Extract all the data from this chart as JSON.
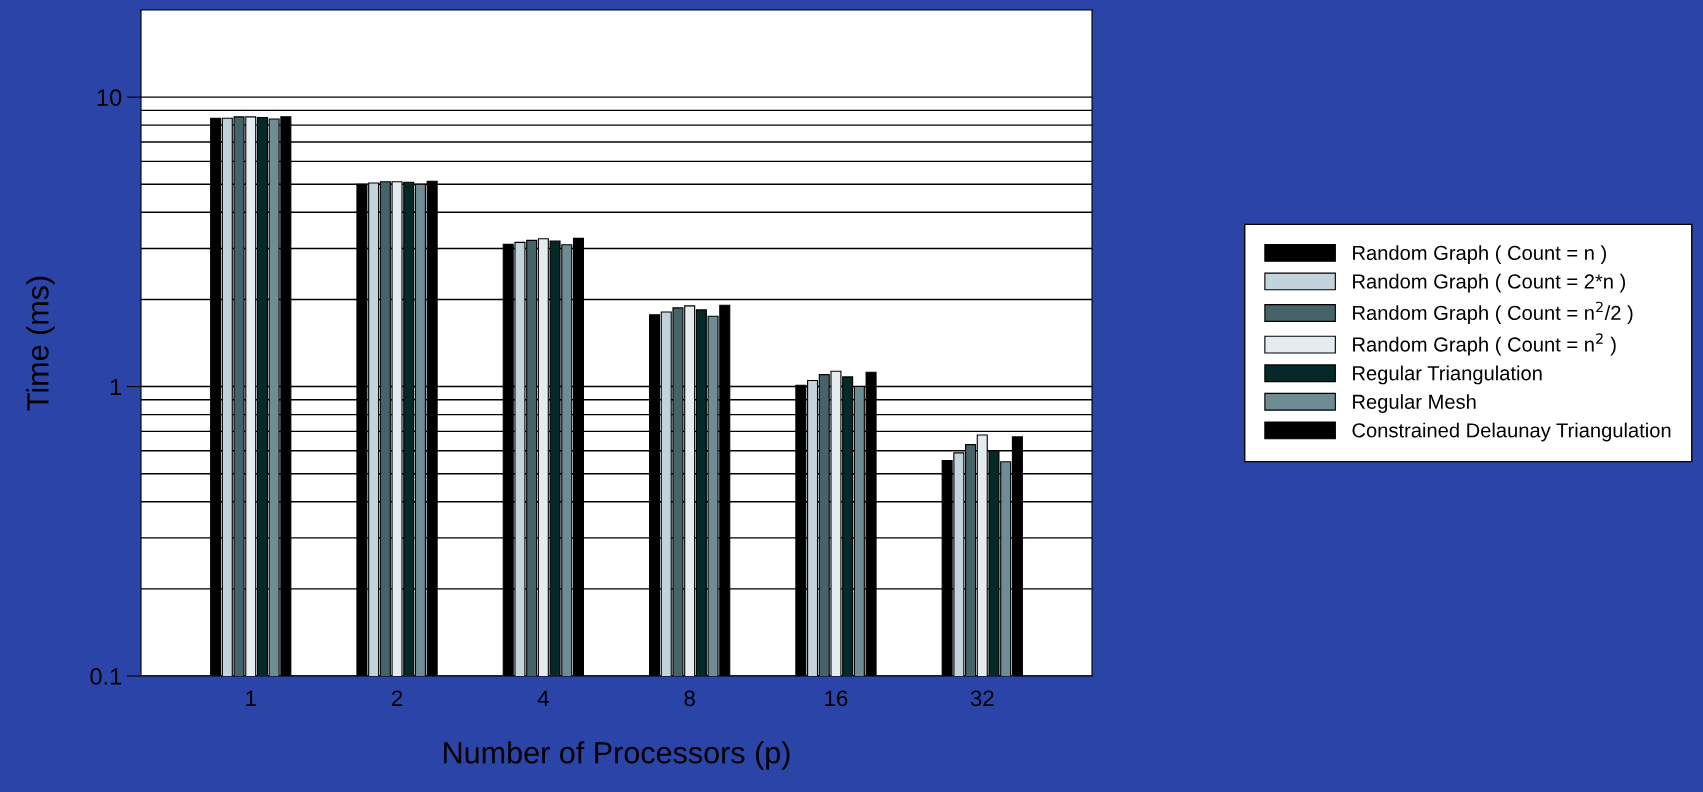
{
  "chart_data": {
    "type": "bar",
    "xlabel": "Number of Processors (p)",
    "ylabel": "Time (ms)",
    "categories": [
      "1",
      "2",
      "4",
      "8",
      "16",
      "32"
    ],
    "series": [
      {
        "name": "Random Graph ( Count = n )",
        "color": "#000000",
        "values": [
          8.45,
          5.0,
          3.1,
          1.77,
          1.01,
          0.555
        ]
      },
      {
        "name": "Random Graph ( Count = 2*n )",
        "color": "#c3d3db",
        "values": [
          8.45,
          5.05,
          3.15,
          1.81,
          1.05,
          0.59
        ]
      },
      {
        "name": "Random Graph ( Count = n$^{2}$/2 )",
        "color": "#44646a",
        "values": [
          8.55,
          5.1,
          3.2,
          1.87,
          1.1,
          0.63
        ]
      },
      {
        "name": "Random Graph ( Count = n$^{2}$ )",
        "color": "#e4ecf0",
        "values": [
          8.55,
          5.1,
          3.24,
          1.9,
          1.13,
          0.68
        ]
      },
      {
        "name": "Regular Triangulation",
        "color": "#052828",
        "values": [
          8.5,
          5.08,
          3.18,
          1.84,
          1.08,
          0.6
        ]
      },
      {
        "name": "Regular Mesh",
        "color": "#6f8c94",
        "values": [
          8.4,
          5.0,
          3.09,
          1.75,
          1.0,
          0.55
        ]
      },
      {
        "name": "Constrained Delaunay Triangulation",
        "color": "#000000",
        "values": [
          8.55,
          5.12,
          3.25,
          1.91,
          1.12,
          0.67
        ]
      }
    ],
    "log": "y",
    "ylim": [
      0.1,
      20
    ],
    "yticks": [
      0.1,
      {
        "value": 0.2,
        "label": null
      },
      {
        "value": 0.3,
        "label": null
      },
      {
        "value": 0.4,
        "label": null
      },
      {
        "value": 0.5,
        "label": null
      },
      {
        "value": 0.6,
        "label": null
      },
      {
        "value": 0.7,
        "label": null
      },
      {
        "value": 0.8,
        "label": null
      },
      {
        "value": 0.9,
        "label": null
      },
      1,
      {
        "value": 2,
        "label": null
      },
      {
        "value": 3,
        "label": null
      },
      {
        "value": 4,
        "label": null
      },
      {
        "value": 5,
        "label": null
      },
      {
        "value": 6,
        "label": null
      },
      {
        "value": 7,
        "label": null
      },
      {
        "value": 8,
        "label": null
      },
      {
        "value": 9,
        "label": null
      },
      10
    ],
    "grid": "y",
    "legend": "right"
  }
}
